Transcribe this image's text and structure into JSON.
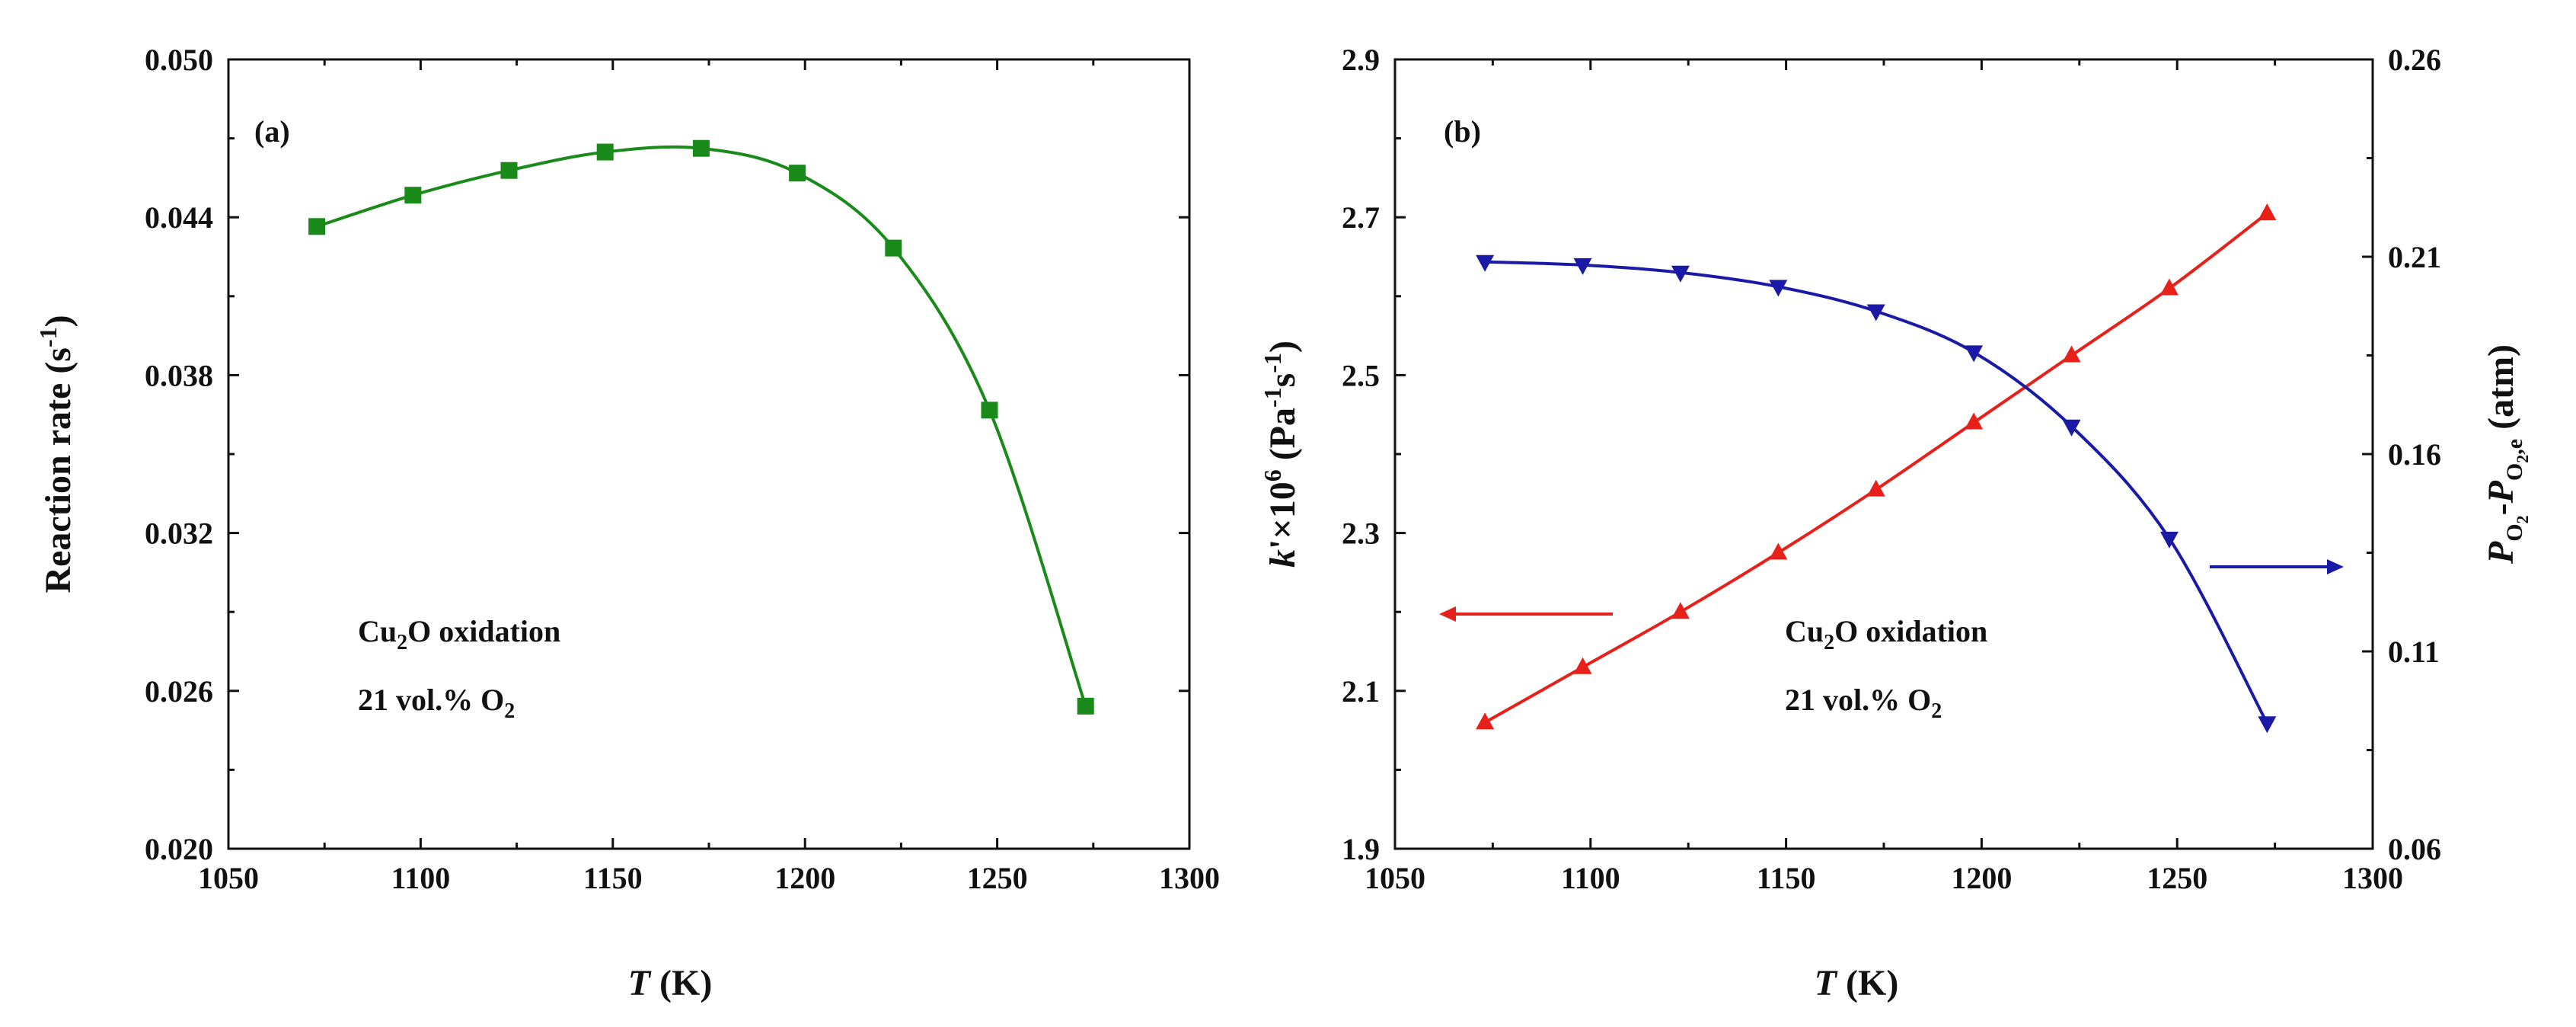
{
  "chart_data": [
    {
      "type": "line",
      "panel": "(a)",
      "xlabel": "T (K)",
      "ylabel": "Reaction rate (s-1)",
      "xlim": [
        1050,
        1300
      ],
      "ylim": [
        0.02,
        0.05
      ],
      "xticks": [
        "1050",
        "1100",
        "1150",
        "1200",
        "1250",
        "1300"
      ],
      "yticks": [
        "0.020",
        "0.026",
        "0.032",
        "0.038",
        "0.044",
        "0.050"
      ],
      "annotation": [
        "Cu2O oxidation",
        "21 vol.% O2"
      ],
      "series": [
        {
          "name": "Reaction rate",
          "color": "#1a8a1a",
          "marker": "square",
          "x": [
            1073,
            1098,
            1123,
            1148,
            1173,
            1198,
            1223,
            1248,
            1273
          ],
          "y": [
            0.04365,
            0.04484,
            0.04578,
            0.04648,
            0.04662,
            0.04568,
            0.04283,
            0.03667,
            0.02542
          ]
        }
      ]
    },
    {
      "type": "line",
      "panel": "(b)",
      "xlabel": "T (K)",
      "ylabel_left": "k'×10^6 (Pa-1s-1)",
      "ylabel_right": "PO2-PO2,e (atm)",
      "xlim": [
        1050,
        1300
      ],
      "ylim_left": [
        1.9,
        2.9
      ],
      "ylim_right": [
        0.06,
        0.26
      ],
      "xticks": [
        "1050",
        "1100",
        "1150",
        "1200",
        "1250",
        "1300"
      ],
      "yticks_left": [
        "1.9",
        "2.1",
        "2.3",
        "2.5",
        "2.7",
        "2.9"
      ],
      "yticks_right": [
        "0.06",
        "0.11",
        "0.16",
        "0.21",
        "0.26"
      ],
      "annotation": [
        "Cu2O oxidation",
        "21 vol.% O2"
      ],
      "series": [
        {
          "name": "k'×10^6",
          "axis": "left",
          "color": "#e8201a",
          "marker": "triangle-up",
          "x": [
            1073,
            1098,
            1123,
            1148,
            1173,
            1198,
            1223,
            1248,
            1273
          ],
          "y": [
            2.06,
            2.13,
            2.2,
            2.275,
            2.355,
            2.44,
            2.525,
            2.61,
            2.705
          ]
        },
        {
          "name": "PO2-PO2,e",
          "axis": "right",
          "color": "#1a1aa6",
          "marker": "triangle-down",
          "x": [
            1073,
            1098,
            1123,
            1148,
            1173,
            1198,
            1223,
            1248,
            1273
          ],
          "y": [
            0.2087,
            0.2079,
            0.206,
            0.2024,
            0.1962,
            0.1858,
            0.167,
            0.1386,
            0.0918
          ]
        }
      ],
      "arrows": [
        {
          "series": "k'×10^6",
          "direction": "left"
        },
        {
          "series": "PO2-PO2,e",
          "direction": "right"
        }
      ]
    }
  ]
}
